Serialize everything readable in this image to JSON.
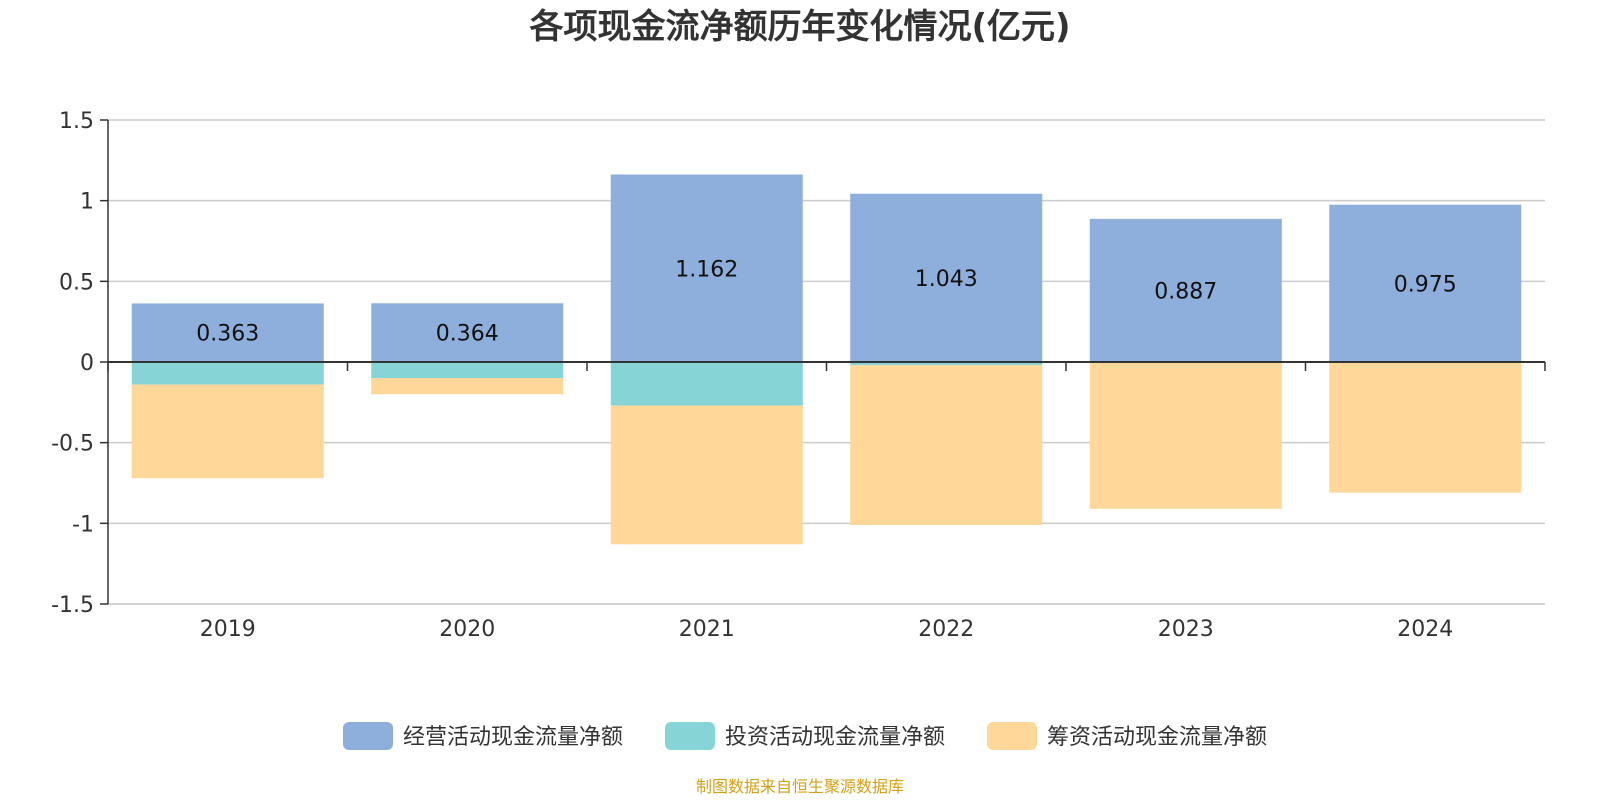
{
  "chart_data": {
    "type": "bar",
    "stacked": true,
    "title": "各项现金流净额历年变化情况(亿元)",
    "categories": [
      "2019",
      "2020",
      "2021",
      "2022",
      "2023",
      "2024"
    ],
    "ylim": [
      -1.5,
      1.5
    ],
    "yticks": [
      "1.5",
      "1",
      "0.5",
      "0",
      "-0.5",
      "-1",
      "-1.5"
    ],
    "ytick_values": [
      1.5,
      1,
      0.5,
      0,
      -0.5,
      -1,
      -1.5
    ],
    "grid": true,
    "legend_position": "bottom",
    "series": [
      {
        "name": "经营活动现金流量净额",
        "color": "#8eaedb",
        "values": [
          0.363,
          0.364,
          1.162,
          1.043,
          0.887,
          0.975
        ],
        "labels": [
          "0.363",
          "0.364",
          "1.162",
          "1.043",
          "0.887",
          "0.975"
        ]
      },
      {
        "name": "投资活动现金流量净额",
        "color": "#87d4d7",
        "values": [
          -0.14,
          -0.1,
          -0.27,
          -0.02,
          0.0,
          0.0
        ],
        "labels": []
      },
      {
        "name": "筹资活动现金流量净额",
        "color": "#fed799",
        "values": [
          -0.58,
          -0.1,
          -0.86,
          -0.99,
          -0.91,
          -0.81
        ],
        "labels": []
      }
    ]
  },
  "footer": {
    "source": "制图数据来自恒生聚源数据库",
    "source_color": "#d4a017"
  }
}
